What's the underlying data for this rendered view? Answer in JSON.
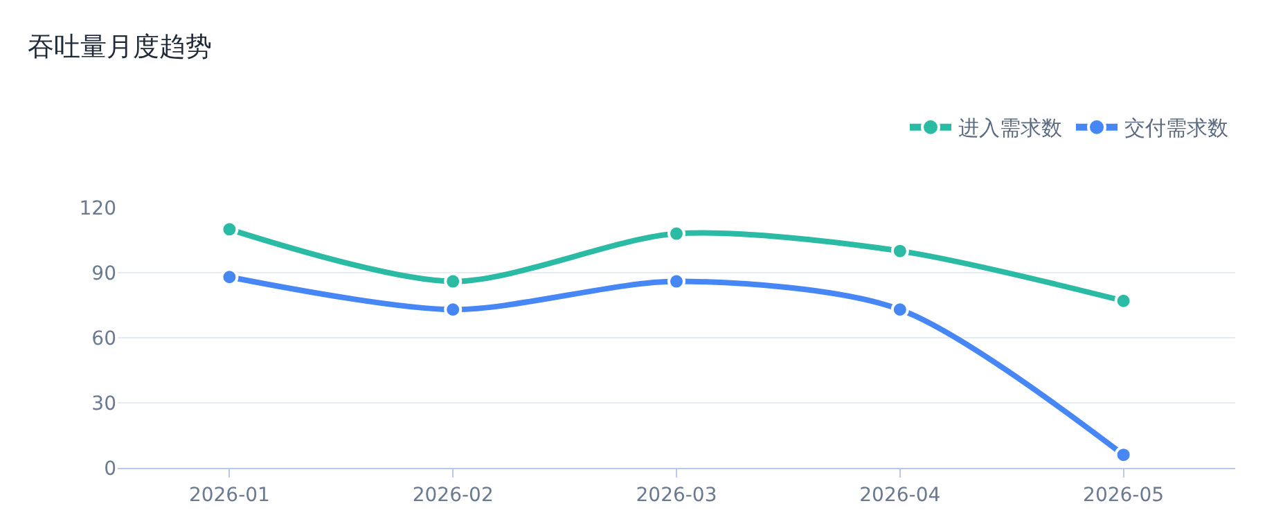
{
  "chart_data": {
    "type": "line",
    "title": "吞吐量月度趋势",
    "categories": [
      "2026-01",
      "2026-02",
      "2026-03",
      "2026-04",
      "2026-05"
    ],
    "series": [
      {
        "name": "进入需求数",
        "color": "#2bbba4",
        "values": [
          110,
          86,
          108,
          100,
          77
        ]
      },
      {
        "name": "交付需求数",
        "color": "#4687f5",
        "values": [
          88,
          73,
          86,
          73,
          6
        ]
      }
    ],
    "ylim": [
      0,
      120
    ],
    "yticks": [
      0,
      30,
      60,
      90,
      120
    ],
    "grid": "y",
    "legend": "top right",
    "marker": "circle",
    "line_style": "solid"
  }
}
